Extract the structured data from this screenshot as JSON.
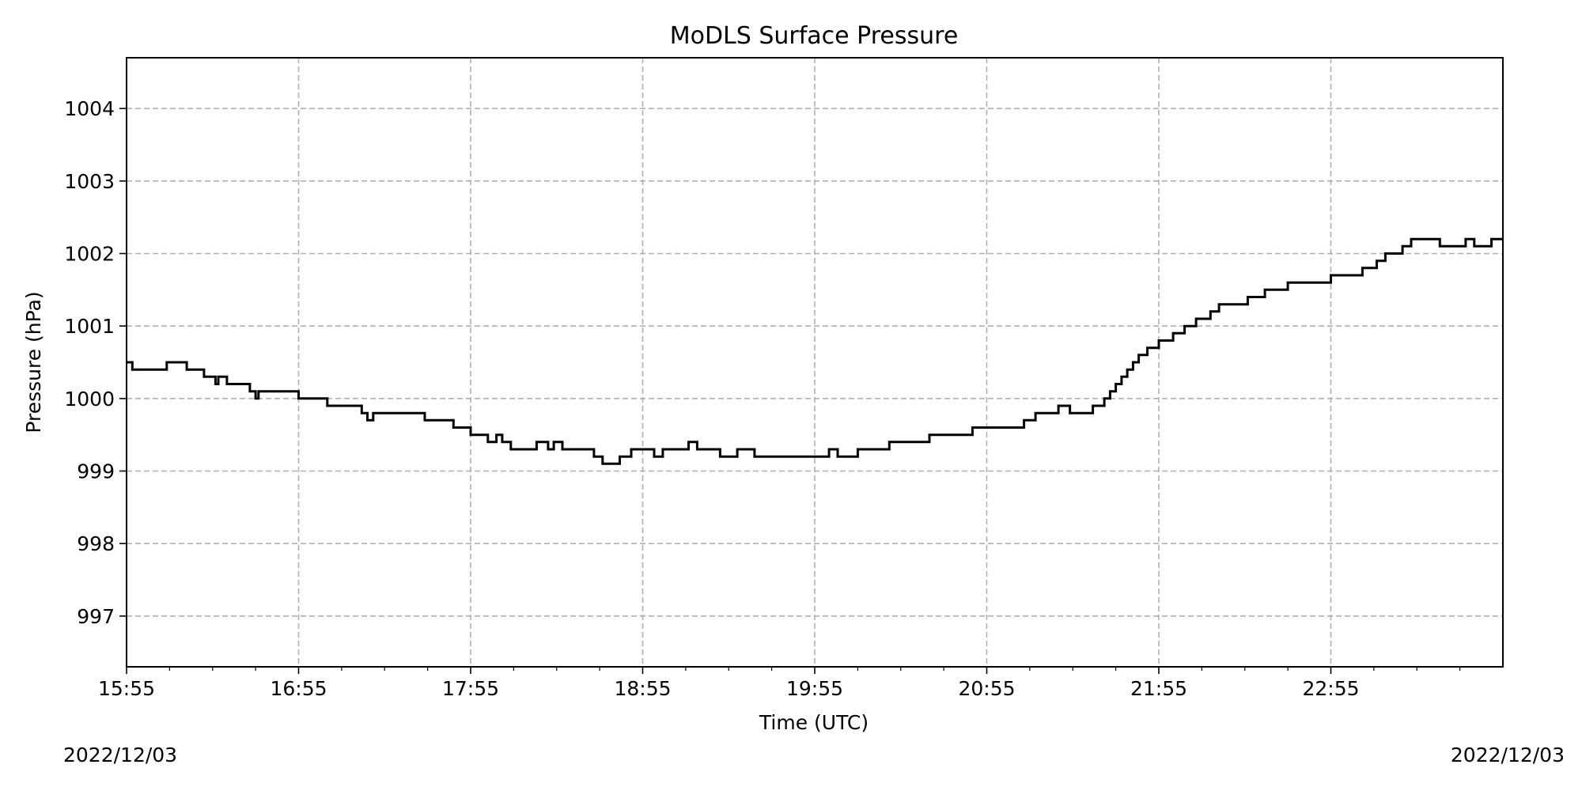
{
  "chart_data": {
    "type": "line",
    "title": "MoDLS Surface Pressure",
    "xlabel": "Time (UTC)",
    "ylabel": "Pressure (hPa)",
    "x_start_label": "2022/12/03",
    "x_end_label": "2022/12/03",
    "x_tick_labels": [
      "15:55",
      "16:55",
      "17:55",
      "18:55",
      "19:55",
      "20:55",
      "21:55",
      "22:55"
    ],
    "x_range": [
      "15:55",
      "23:55"
    ],
    "ylim": [
      996.3,
      1004.7
    ],
    "y_ticks": [
      997,
      998,
      999,
      1000,
      1001,
      1002,
      1003,
      1004
    ],
    "grid": true,
    "line_color": "#000000",
    "grid_color": "#b0b0b0",
    "series": [
      {
        "step": true,
        "points": [
          [
            "15:55",
            1000.5
          ],
          [
            "15:57",
            1000.4
          ],
          [
            "16:09",
            1000.5
          ],
          [
            "16:16",
            1000.4
          ],
          [
            "16:22",
            1000.3
          ],
          [
            "16:26",
            1000.2
          ],
          [
            "16:27",
            1000.3
          ],
          [
            "16:30",
            1000.2
          ],
          [
            "16:38",
            1000.1
          ],
          [
            "16:40",
            1000.0
          ],
          [
            "16:41",
            1000.1
          ],
          [
            "16:55",
            1000.0
          ],
          [
            "17:05",
            999.9
          ],
          [
            "17:17",
            999.8
          ],
          [
            "17:19",
            999.7
          ],
          [
            "17:21",
            999.8
          ],
          [
            "17:39",
            999.7
          ],
          [
            "17:49",
            999.6
          ],
          [
            "17:55",
            999.5
          ],
          [
            "18:01",
            999.4
          ],
          [
            "18:04",
            999.5
          ],
          [
            "18:06",
            999.4
          ],
          [
            "18:09",
            999.3
          ],
          [
            "18:18",
            999.4
          ],
          [
            "18:22",
            999.3
          ],
          [
            "18:24",
            999.4
          ],
          [
            "18:27",
            999.3
          ],
          [
            "18:38",
            999.2
          ],
          [
            "18:41",
            999.1
          ],
          [
            "18:47",
            999.2
          ],
          [
            "18:51",
            999.3
          ],
          [
            "18:59",
            999.2
          ],
          [
            "19:02",
            999.3
          ],
          [
            "19:11",
            999.4
          ],
          [
            "19:14",
            999.3
          ],
          [
            "19:22",
            999.2
          ],
          [
            "19:28",
            999.3
          ],
          [
            "19:34",
            999.2
          ],
          [
            "20:00",
            999.3
          ],
          [
            "20:03",
            999.2
          ],
          [
            "20:10",
            999.3
          ],
          [
            "20:21",
            999.4
          ],
          [
            "20:35",
            999.5
          ],
          [
            "20:50",
            999.6
          ],
          [
            "21:08",
            999.7
          ],
          [
            "21:12",
            999.8
          ],
          [
            "21:20",
            999.9
          ],
          [
            "21:24",
            999.8
          ],
          [
            "21:32",
            999.9
          ],
          [
            "21:36",
            1000.0
          ],
          [
            "21:38",
            1000.1
          ],
          [
            "21:40",
            1000.2
          ],
          [
            "21:42",
            1000.3
          ],
          [
            "21:44",
            1000.4
          ],
          [
            "21:46",
            1000.5
          ],
          [
            "21:48",
            1000.6
          ],
          [
            "21:51",
            1000.7
          ],
          [
            "21:55",
            1000.8
          ],
          [
            "22:00",
            1000.9
          ],
          [
            "22:04",
            1001.0
          ],
          [
            "22:08",
            1001.1
          ],
          [
            "22:13",
            1001.2
          ],
          [
            "22:16",
            1001.3
          ],
          [
            "22:26",
            1001.4
          ],
          [
            "22:32",
            1001.5
          ],
          [
            "22:40",
            1001.6
          ],
          [
            "22:55",
            1001.7
          ],
          [
            "23:06",
            1001.8
          ],
          [
            "23:11",
            1001.9
          ],
          [
            "23:14",
            1002.0
          ],
          [
            "23:20",
            1002.1
          ],
          [
            "23:23",
            1002.2
          ],
          [
            "23:33",
            1002.1
          ],
          [
            "23:42",
            1002.2
          ],
          [
            "23:45",
            1002.1
          ],
          [
            "23:51",
            1002.2
          ],
          [
            "23:55",
            1002.2
          ]
        ]
      }
    ]
  }
}
